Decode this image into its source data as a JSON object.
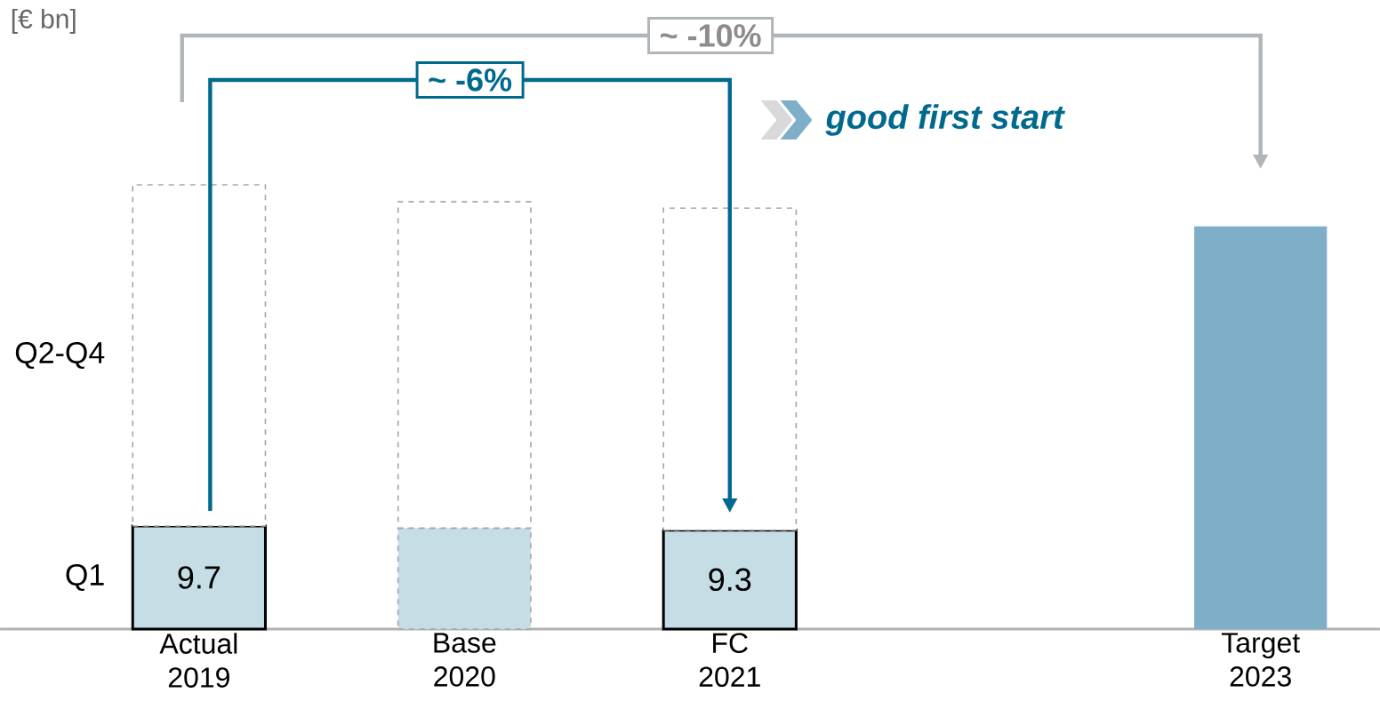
{
  "chart_data": {
    "type": "bar",
    "stacked": true,
    "categories": [
      "Actual 2019",
      "Base 2020",
      "FC 2021",
      null,
      "Target 2023"
    ],
    "series": [
      {
        "name": "Q1",
        "color": "#c5dde4",
        "values": [
          9.7,
          9.5,
          9.3,
          null,
          null
        ],
        "value_labels": [
          "9.7",
          null,
          "9.3",
          null,
          null
        ]
      },
      {
        "name": "Q2-Q4",
        "color": "#ffffff",
        "values": [
          32.1,
          30.7,
          30.3,
          null,
          null
        ]
      },
      {
        "color": "#7fafc8",
        "values": [
          null,
          null,
          null,
          null,
          37.9
        ]
      }
    ],
    "annotations": [
      "[€ bn]",
      "~ -10%",
      "~ -6%",
      "good first start"
    ]
  }
}
